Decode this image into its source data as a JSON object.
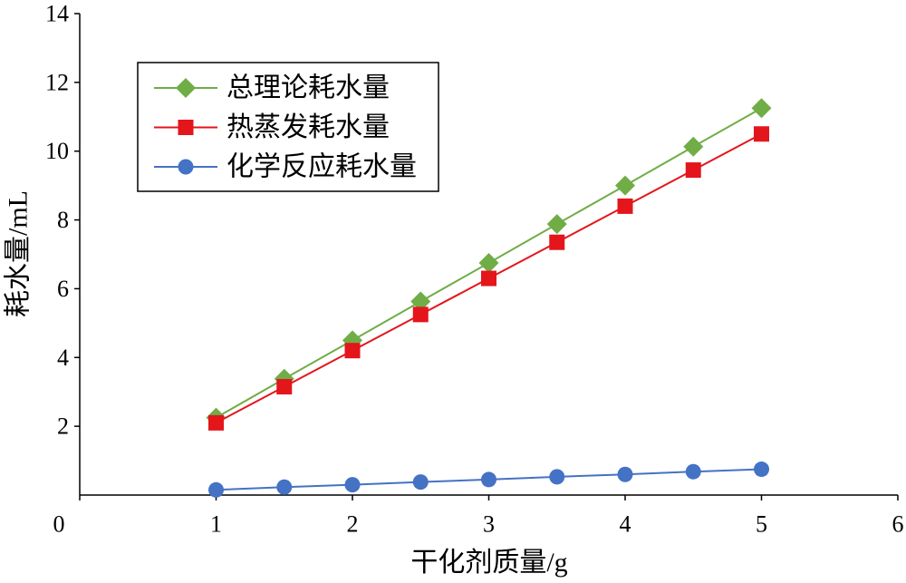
{
  "chart_data": {
    "type": "line",
    "x": [
      1,
      1.5,
      2,
      2.5,
      3,
      3.5,
      4,
      4.5,
      5
    ],
    "series": [
      {
        "name": "总理论耗水量",
        "values": [
          2.25,
          3.38,
          4.5,
          5.63,
          6.75,
          7.88,
          9.0,
          10.13,
          11.25
        ],
        "color": "#70AD47",
        "marker": "diamond"
      },
      {
        "name": "热蒸发耗水量",
        "values": [
          2.1,
          3.15,
          4.2,
          5.25,
          6.3,
          7.35,
          8.4,
          9.45,
          10.5
        ],
        "color": "#E3161B",
        "marker": "square"
      },
      {
        "name": "化学反应耗水量",
        "values": [
          0.15,
          0.23,
          0.3,
          0.38,
          0.45,
          0.53,
          0.6,
          0.68,
          0.75
        ],
        "color": "#4472C4",
        "marker": "circle"
      }
    ],
    "xlabel": "干化剂质量/g",
    "ylabel": "耗水量/mL",
    "xlim": [
      0,
      6
    ],
    "ylim": [
      0,
      14
    ],
    "xticks": [
      0,
      1,
      2,
      3,
      4,
      5,
      6
    ],
    "yticks": [
      2,
      4,
      6,
      8,
      10,
      12,
      14
    ],
    "grid": false,
    "legend": "top-left"
  }
}
